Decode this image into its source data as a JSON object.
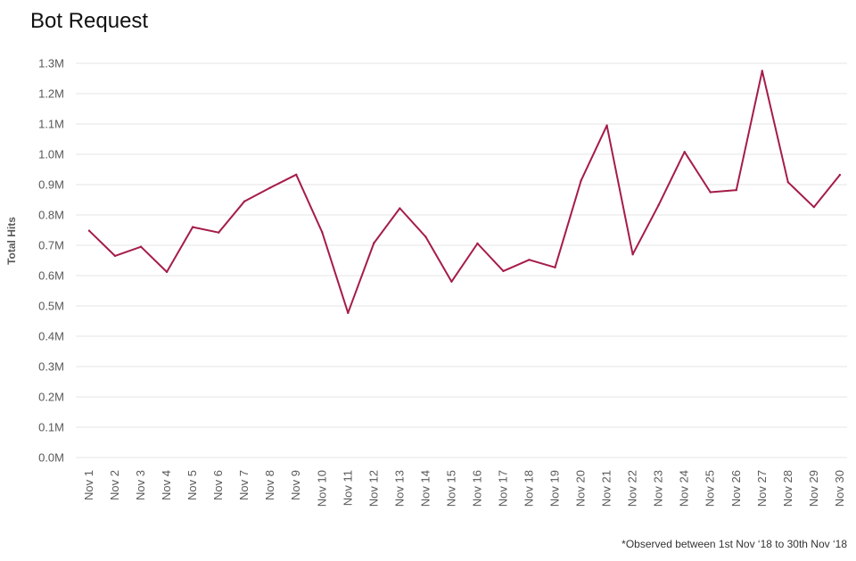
{
  "title": "Bot Request",
  "footnote": "*Observed between 1st Nov ‘18 to 30th  Nov ‘18",
  "colors": {
    "line": "#A51C47",
    "grid": "#E6E6E6",
    "tick_text": "#595959"
  },
  "chart_data": {
    "type": "line",
    "title": "Bot Request",
    "xlabel": "",
    "ylabel": "Total Hits",
    "ylim": [
      0,
      1300000
    ],
    "yticks": [
      {
        "value": 0,
        "label": "0.0M"
      },
      {
        "value": 100000,
        "label": "0.1M"
      },
      {
        "value": 200000,
        "label": "0.2M"
      },
      {
        "value": 300000,
        "label": "0.3M"
      },
      {
        "value": 400000,
        "label": "0.4M"
      },
      {
        "value": 500000,
        "label": "0.5M"
      },
      {
        "value": 600000,
        "label": "0.6M"
      },
      {
        "value": 700000,
        "label": "0.7M"
      },
      {
        "value": 800000,
        "label": "0.8M"
      },
      {
        "value": 900000,
        "label": "0.9M"
      },
      {
        "value": 1000000,
        "label": "1.0M"
      },
      {
        "value": 1100000,
        "label": "1.1M"
      },
      {
        "value": 1200000,
        "label": "1.2M"
      },
      {
        "value": 1300000,
        "label": "1.3M"
      }
    ],
    "grid": true,
    "legend": "none",
    "categories": [
      "Nov 1",
      "Nov 2",
      "Nov 3",
      "Nov 4",
      "Nov 5",
      "Nov 6",
      "Nov 7",
      "Nov 8",
      "Nov 9",
      "Nov 10",
      "Nov 11",
      "Nov 12",
      "Nov 13",
      "Nov 14",
      "Nov 15",
      "Nov 16",
      "Nov 17",
      "Nov 18",
      "Nov 19",
      "Nov 20",
      "Nov 21",
      "Nov 22",
      "Nov 23",
      "Nov 24",
      "Nov 25",
      "Nov 26",
      "Nov 27",
      "Nov 28",
      "Nov 29",
      "Nov 30"
    ],
    "series": [
      {
        "values": [
          748000,
          665000,
          695000,
          612000,
          760000,
          742000,
          845000,
          890000,
          933000,
          743000,
          477000,
          707000,
          822000,
          728000,
          580000,
          706000,
          615000,
          652000,
          627000,
          913000,
          1095000,
          670000,
          833000,
          1008000,
          875000,
          882000,
          1275000,
          908000,
          826000,
          932000
        ]
      }
    ]
  }
}
